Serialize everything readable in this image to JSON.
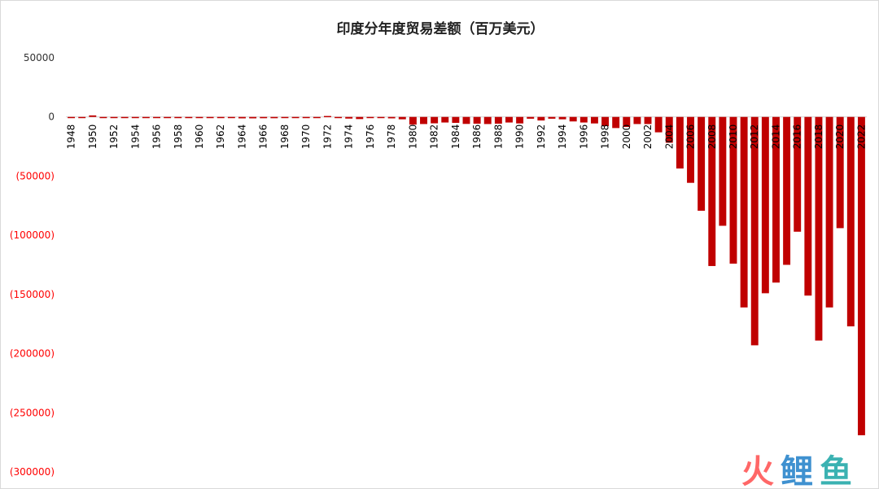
{
  "chart_data": {
    "type": "bar",
    "title": "印度分年度贸易差额（百万美元）",
    "xlabel": "",
    "ylabel": "",
    "ylim": [
      -300000,
      50000
    ],
    "yticks": [
      50000,
      0,
      -50000,
      -100000,
      -150000,
      -200000,
      -250000,
      -300000
    ],
    "ytick_labels": [
      "50000",
      "0",
      "(50000)",
      "(100000)",
      "(150000)",
      "(200000)",
      "(250000)",
      "(300000)"
    ],
    "negative_label_color": "#ff0000",
    "positive_label_color": "#333333",
    "bar_color": "#c00000",
    "grid": false,
    "legend": "none",
    "x_label_every": 2,
    "categories": [
      1948,
      1949,
      1950,
      1951,
      1952,
      1953,
      1954,
      1955,
      1956,
      1957,
      1958,
      1959,
      1960,
      1961,
      1962,
      1963,
      1964,
      1965,
      1966,
      1967,
      1968,
      1969,
      1970,
      1971,
      1972,
      1973,
      1974,
      1975,
      1976,
      1977,
      1978,
      1979,
      1980,
      1981,
      1982,
      1983,
      1984,
      1985,
      1986,
      1987,
      1988,
      1989,
      1990,
      1991,
      1992,
      1993,
      1994,
      1995,
      1996,
      1997,
      1998,
      1999,
      2000,
      2001,
      2002,
      2003,
      2004,
      2005,
      2006,
      2007,
      2008,
      2009,
      2010,
      2011,
      2012,
      2013,
      2014,
      2015,
      2016,
      2017,
      2018,
      2019,
      2020,
      2021,
      2022
    ],
    "values": [
      -400,
      -300,
      1300,
      -300,
      -400,
      -200,
      -300,
      -300,
      -500,
      -600,
      -500,
      -500,
      -600,
      -500,
      -500,
      -400,
      -1200,
      -1200,
      -1100,
      -1100,
      -600,
      -300,
      -200,
      -200,
      800,
      -300,
      -1400,
      -1800,
      -200,
      -600,
      -1200,
      -2000,
      -6500,
      -6000,
      -5400,
      -4700,
      -5000,
      -5900,
      -5700,
      -6000,
      -5700,
      -4700,
      -5500,
      -1500,
      -3000,
      -1500,
      -2000,
      -3800,
      -4700,
      -5500,
      -7800,
      -9400,
      -8500,
      -6000,
      -6000,
      -13000,
      -21800,
      -43600,
      -55700,
      -79300,
      -126000,
      -92000,
      -124000,
      -161000,
      -193000,
      -149000,
      -140000,
      -125000,
      -97000,
      -151000,
      -189000,
      -161000,
      -94000,
      -177000,
      -269000
    ]
  },
  "watermark": {
    "text": "火鲤鱼",
    "glyph_colors": [
      "#ff4d4d",
      "#1e7ec8",
      "#1aa5a5"
    ]
  }
}
